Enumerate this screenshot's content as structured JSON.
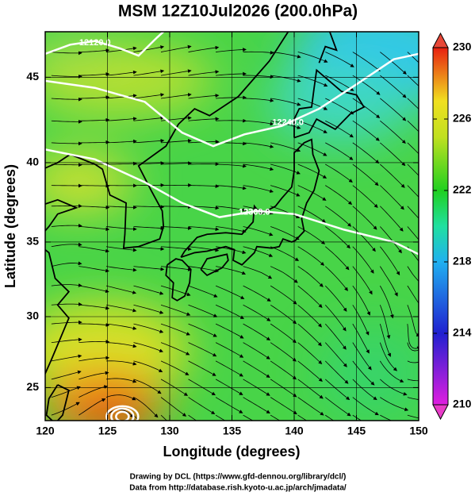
{
  "chart_data": {
    "type": "map",
    "title": "MSM 12Z10Jul2026 (200.0hPa)",
    "xlabel": "Longitude (degrees)",
    "ylabel": "Latitude  (degrees)",
    "xlim": [
      120,
      150
    ],
    "ylim": [
      22.6,
      47.5
    ],
    "xticks": [
      120,
      125,
      130,
      135,
      140,
      145,
      150
    ],
    "yticks": [
      25,
      30,
      35,
      40,
      45
    ],
    "projection": "mercator",
    "colorbar": {
      "lim": [
        210,
        230
      ],
      "ticks": [
        210,
        214,
        218,
        222,
        226,
        230
      ]
    },
    "contour_labels": [
      "12120.0",
      "12240.0",
      "12360.0"
    ]
  },
  "footer": [
    "Drawing by DCL (https://www.gfd-dennou.org/library/dcl/)",
    "Data from http://database.rish.kyoto-u.ac.jp/arch/jmadata/"
  ]
}
